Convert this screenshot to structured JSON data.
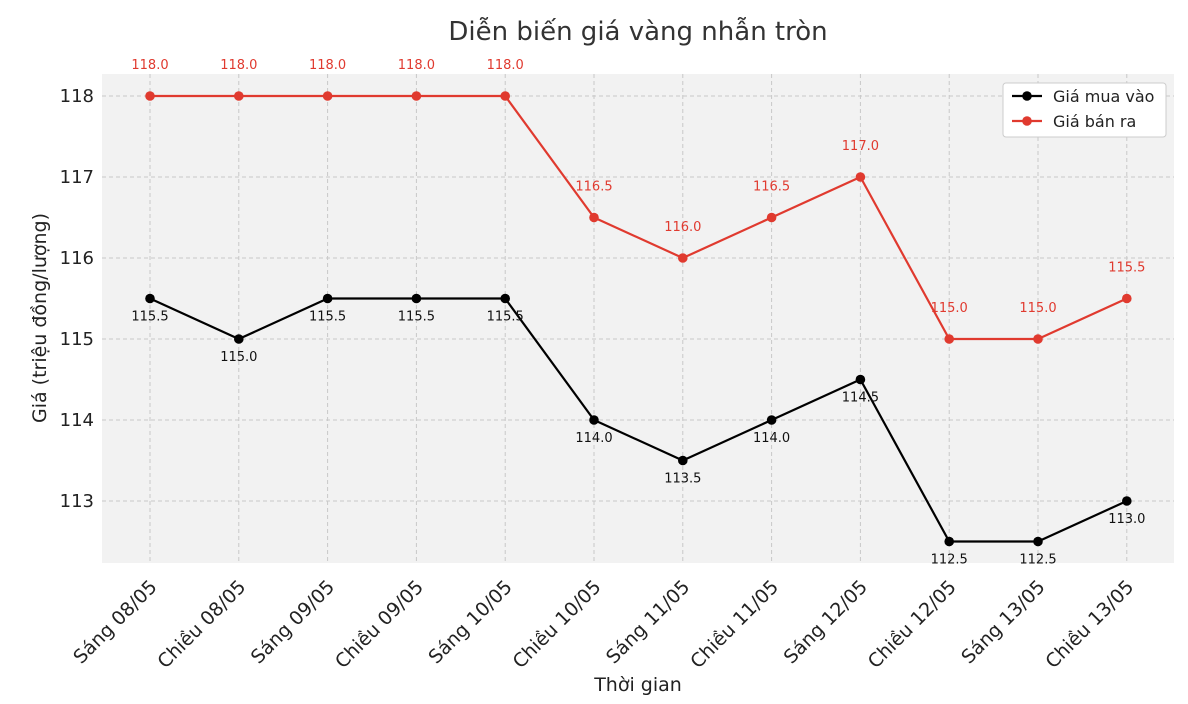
{
  "chart_data": {
    "type": "line",
    "title": "Diễn biến giá vàng nhẫn tròn",
    "xlabel": "Thời gian",
    "ylabel": "Giá (triệu đồng/lượng)",
    "categories": [
      "Sáng 08/05",
      "Chiều 08/05",
      "Sáng 09/05",
      "Chiều 09/05",
      "Sáng 10/05",
      "Chiều 10/05",
      "Sáng 11/05",
      "Chiều 11/05",
      "Sáng 12/05",
      "Chiều 12/05",
      "Sáng 13/05",
      "Chiều 13/05"
    ],
    "ylim": [
      112.25,
      118.3
    ],
    "yticks": [
      113,
      114,
      115,
      116,
      117,
      118
    ],
    "grid": true,
    "legend_position": "top-right",
    "series": [
      {
        "name": "Giá mua vào",
        "color": "#000000",
        "values": [
          115.5,
          115.0,
          115.5,
          115.5,
          115.5,
          114.0,
          113.5,
          114.0,
          114.5,
          112.5,
          112.5,
          113.0
        ],
        "labels": [
          "115.5",
          "115.0",
          "115.5",
          "115.5",
          "115.5",
          "114.0",
          "113.5",
          "114.0",
          "114.5",
          "112.5",
          "112.5",
          "113.0"
        ],
        "label_side": "below"
      },
      {
        "name": "Giá bán ra",
        "color": "#e03a2f",
        "values": [
          118.0,
          118.0,
          118.0,
          118.0,
          118.0,
          116.5,
          116.0,
          116.5,
          117.0,
          115.0,
          115.0,
          115.5
        ],
        "labels": [
          "118.0",
          "118.0",
          "118.0",
          "118.0",
          "118.0",
          "116.5",
          "116.0",
          "116.5",
          "117.0",
          "115.0",
          "115.0",
          "115.5"
        ],
        "label_side": "above"
      }
    ]
  }
}
